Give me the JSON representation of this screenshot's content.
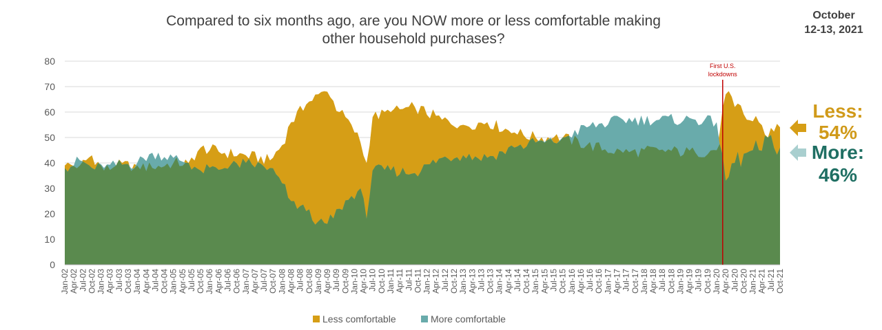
{
  "title_line1": "Compared to six months ago, are you NOW more or less comfortable making",
  "title_line2": "other household purchases?",
  "date_line1": "October",
  "date_line2": "12-13, 2021",
  "callouts": {
    "less_label": "Less:",
    "less_value": "54%",
    "more_label": "More:",
    "more_value": "46%"
  },
  "colors": {
    "less": "#D69E16",
    "more": "#69ABAB",
    "base": "#5A8A4E",
    "marker": "#C00000"
  },
  "chart_data": {
    "type": "area",
    "ylim": [
      0,
      80
    ],
    "yticks": [
      0,
      10,
      20,
      30,
      40,
      50,
      60,
      70,
      80
    ],
    "x_start": "2002-01",
    "x_end": "2021-10",
    "x_tick_labels": [
      "Jan-02",
      "Apr-02",
      "Jul-02",
      "Oct-02",
      "Jan-03",
      "Apr-03",
      "Jul-03",
      "Oct-03",
      "Jan-04",
      "Apr-04",
      "Jul-04",
      "Oct-04",
      "Jan-05",
      "Apr-05",
      "Jul-05",
      "Oct-05",
      "Jan-06",
      "Apr-06",
      "Jul-06",
      "Oct-06",
      "Jan-07",
      "Apr-07",
      "Jul-07",
      "Oct-07",
      "Jan-08",
      "Apr-08",
      "Jul-08",
      "Oct-08",
      "Jan-09",
      "Apr-09",
      "Jul-09",
      "Oct-09",
      "Jan-10",
      "Apr-10",
      "Jul-10",
      "Oct-10",
      "Jan-11",
      "Apr-11",
      "Jul-11",
      "Oct-11",
      "Jan-12",
      "Apr-12",
      "Jul-12",
      "Oct-12",
      "Jan-13",
      "Apr-13",
      "Jul-13",
      "Oct-13",
      "Jan-14",
      "Apr-14",
      "Jul-14",
      "Oct-14",
      "Jan-15",
      "Apr-15",
      "Jul-15",
      "Oct-15",
      "Jan-16",
      "Apr-16",
      "Jul-16",
      "Oct-16",
      "Jan-17",
      "Apr-17",
      "Jul-17",
      "Oct-17",
      "Jan-18",
      "Apr-18",
      "Jul-18",
      "Oct-18",
      "Jan-19",
      "Apr-19",
      "Jul-19",
      "Oct-19",
      "Jan-20",
      "Apr-20",
      "Jul-20",
      "Oct-20",
      "Jan-21",
      "Apr-21",
      "Jul-21",
      "Oct-21"
    ],
    "series": [
      {
        "name": "Less comfortable",
        "anchors": [
          [
            "2002-01",
            39
          ],
          [
            "2002-06",
            39
          ],
          [
            "2002-10",
            43
          ],
          [
            "2003-02",
            37
          ],
          [
            "2003-06",
            39
          ],
          [
            "2004-01",
            39
          ],
          [
            "2004-06",
            38
          ],
          [
            "2005-01",
            40
          ],
          [
            "2005-06",
            40
          ],
          [
            "2005-10",
            46
          ],
          [
            "2006-06",
            44
          ],
          [
            "2007-01",
            43
          ],
          [
            "2007-09",
            41
          ],
          [
            "2008-01",
            47
          ],
          [
            "2008-04",
            56
          ],
          [
            "2008-09",
            63
          ],
          [
            "2009-01",
            67
          ],
          [
            "2009-04",
            68
          ],
          [
            "2009-08",
            60
          ],
          [
            "2009-12",
            55
          ],
          [
            "2010-03",
            48
          ],
          [
            "2010-05",
            40
          ],
          [
            "2010-07",
            58
          ],
          [
            "2011-01",
            60
          ],
          [
            "2011-09",
            62
          ],
          [
            "2012-06",
            57
          ],
          [
            "2013-01",
            55
          ],
          [
            "2013-09",
            56
          ],
          [
            "2014-06",
            52
          ],
          [
            "2015-01",
            50
          ],
          [
            "2015-07",
            50
          ],
          [
            "2015-10",
            50
          ],
          [
            "2016-06",
            47
          ],
          [
            "2017-06",
            44
          ],
          [
            "2018-06",
            45
          ],
          [
            "2019-06",
            44
          ],
          [
            "2020-01",
            45
          ],
          [
            "2020-04",
            67
          ],
          [
            "2020-07",
            62
          ],
          [
            "2020-11",
            57
          ],
          [
            "2021-03",
            56
          ],
          [
            "2021-06",
            50
          ],
          [
            "2021-10",
            54
          ]
        ]
      },
      {
        "name": "More comfortable",
        "anchors": [
          [
            "2002-01",
            38
          ],
          [
            "2002-06",
            41
          ],
          [
            "2002-10",
            38
          ],
          [
            "2003-02",
            38
          ],
          [
            "2003-06",
            39
          ],
          [
            "2004-01",
            40
          ],
          [
            "2004-06",
            44
          ],
          [
            "2005-01",
            42
          ],
          [
            "2005-06",
            40
          ],
          [
            "2005-10",
            37
          ],
          [
            "2006-06",
            38
          ],
          [
            "2007-01",
            40
          ],
          [
            "2007-09",
            38
          ],
          [
            "2008-01",
            32
          ],
          [
            "2008-04",
            25
          ],
          [
            "2008-09",
            21
          ],
          [
            "2009-01",
            17
          ],
          [
            "2009-04",
            16
          ],
          [
            "2009-08",
            22
          ],
          [
            "2009-12",
            27
          ],
          [
            "2010-03",
            30
          ],
          [
            "2010-05",
            18
          ],
          [
            "2010-07",
            37
          ],
          [
            "2011-01",
            37
          ],
          [
            "2011-09",
            36
          ],
          [
            "2012-06",
            42
          ],
          [
            "2013-01",
            43
          ],
          [
            "2013-09",
            42
          ],
          [
            "2014-06",
            46
          ],
          [
            "2015-01",
            48
          ],
          [
            "2015-07",
            48
          ],
          [
            "2015-10",
            50
          ],
          [
            "2016-06",
            54
          ],
          [
            "2017-06",
            57
          ],
          [
            "2018-06",
            57
          ],
          [
            "2019-06",
            57
          ],
          [
            "2020-01",
            56
          ],
          [
            "2020-04",
            33
          ],
          [
            "2020-07",
            40
          ],
          [
            "2020-11",
            44
          ],
          [
            "2021-03",
            45
          ],
          [
            "2021-06",
            50
          ],
          [
            "2021-10",
            46
          ]
        ]
      }
    ],
    "annotation": {
      "date": "2020-03",
      "label_line1": "First U.S.",
      "label_line2": "lockdowns"
    },
    "legend": {
      "position": "bottom",
      "items": [
        "Less comfortable",
        "More comfortable"
      ]
    }
  }
}
